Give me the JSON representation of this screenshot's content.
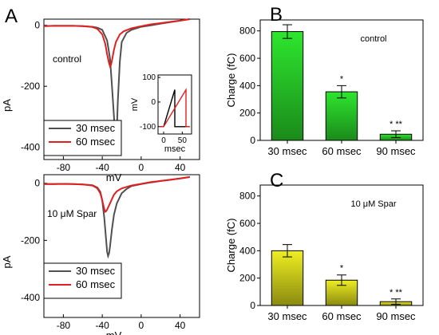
{
  "chart_data": [
    {
      "type": "line",
      "panel": "A",
      "annotation": "control",
      "xlabel": "mV",
      "ylabel": "pA",
      "xlim": [
        -100,
        60
      ],
      "ylim": [
        -440,
        20
      ],
      "xticks": [
        "-80",
        "-40",
        "0",
        "40"
      ],
      "yticks": [
        "0",
        "-200",
        "-400"
      ],
      "legend": {
        "position": "bottom-left",
        "items": [
          "30 msec",
          "60 msec"
        ]
      },
      "series": [
        {
          "name": "30 msec",
          "color": "#505050",
          "x": [
            -100,
            -90,
            -80,
            -70,
            -60,
            -50,
            -45,
            -40,
            -35,
            -32,
            -30,
            -28,
            -27,
            -26,
            -25,
            -24,
            -22,
            -20,
            -15,
            -10,
            0,
            10,
            20,
            30,
            40,
            50
          ],
          "y": [
            -3,
            -2,
            -2,
            -2,
            -3,
            -5,
            -8,
            -15,
            -50,
            -110,
            -200,
            -300,
            -360,
            -385,
            -340,
            -250,
            -120,
            -55,
            -25,
            -15,
            -5,
            0,
            5,
            10,
            15,
            20
          ]
        },
        {
          "name": "60 msec",
          "color": "#e02020",
          "x": [
            -100,
            -90,
            -80,
            -70,
            -60,
            -50,
            -45,
            -40,
            -37,
            -35,
            -33,
            -32,
            -31,
            -30,
            -28,
            -26,
            -22,
            -18,
            -10,
            0,
            10,
            20,
            30,
            40,
            50
          ],
          "y": [
            -3,
            -2,
            -2,
            -2,
            -3,
            -6,
            -12,
            -30,
            -60,
            -95,
            -125,
            -135,
            -130,
            -115,
            -80,
            -55,
            -30,
            -20,
            -10,
            -3,
            3,
            7,
            11,
            15,
            20
          ]
        }
      ],
      "inset": {
        "xlabel": "msec",
        "ylabel": "mV",
        "xticks": [
          "0",
          "50"
        ],
        "yticks": [
          "100",
          "0",
          "-100"
        ],
        "series": [
          {
            "name": "30 msec",
            "color": "#000000",
            "x": [
              -10,
              0,
              0,
              30,
              30,
              70
            ],
            "y": [
              -100,
              -100,
              -100,
              50,
              -100,
              -100
            ]
          },
          {
            "name": "60 msec",
            "color": "#e02020",
            "x": [
              -10,
              0,
              0,
              60,
              60,
              70
            ],
            "y": [
              -100,
              -100,
              -100,
              50,
              -100,
              -100
            ]
          }
        ]
      }
    },
    {
      "type": "line",
      "panel": "A-lower",
      "annotation": "10 μM Spar",
      "xlabel": "mV",
      "ylabel": "pA",
      "xlim": [
        -100,
        60
      ],
      "ylim": [
        -470,
        30
      ],
      "xticks": [
        "-80",
        "-40",
        "0",
        "40"
      ],
      "yticks": [
        "0",
        "-200",
        "-400"
      ],
      "legend": {
        "position": "bottom-left",
        "items": [
          "30 msec",
          "60 msec"
        ]
      },
      "series": [
        {
          "name": "30 msec",
          "color": "#505050",
          "x": [
            -100,
            -90,
            -80,
            -70,
            -60,
            -50,
            -45,
            -42,
            -40,
            -38,
            -36,
            -35,
            -34,
            -33,
            -32,
            -30,
            -28,
            -25,
            -20,
            -15,
            -10,
            0,
            10,
            20,
            30,
            40,
            50
          ],
          "y": [
            -3,
            -3,
            -2,
            -3,
            -4,
            -7,
            -15,
            -30,
            -60,
            -120,
            -200,
            -240,
            -255,
            -245,
            -220,
            -160,
            -110,
            -70,
            -35,
            -20,
            -10,
            -3,
            3,
            8,
            12,
            17,
            22
          ]
        },
        {
          "name": "60 msec",
          "color": "#e02020",
          "x": [
            -100,
            -90,
            -80,
            -70,
            -60,
            -50,
            -45,
            -42,
            -40,
            -38,
            -37,
            -36,
            -35,
            -34,
            -32,
            -30,
            -28,
            -25,
            -20,
            -10,
            0,
            10,
            20,
            30,
            40,
            50
          ],
          "y": [
            -3,
            -3,
            -2,
            -3,
            -4,
            -8,
            -18,
            -35,
            -60,
            -90,
            -100,
            -98,
            -92,
            -85,
            -70,
            -55,
            -40,
            -28,
            -18,
            -8,
            -2,
            4,
            8,
            12,
            17,
            22
          ]
        }
      ]
    },
    {
      "type": "bar",
      "panel": "B",
      "annotation": "control",
      "ylabel": "Charge (fC)",
      "ylim": [
        0,
        880
      ],
      "yticks": [
        "0",
        "200",
        "400",
        "600",
        "800"
      ],
      "categories": [
        "30 msec",
        "60 msec",
        "90 msec"
      ],
      "values": [
        795,
        355,
        45
      ],
      "errors": [
        50,
        45,
        25
      ],
      "significance": [
        "",
        "*",
        "* **"
      ],
      "color_top": "#2ee62e",
      "color_bottom": "#1a8a1a"
    },
    {
      "type": "bar",
      "panel": "C",
      "annotation": "10 μM Spar",
      "ylabel": "Charge (fC)",
      "ylim": [
        0,
        880
      ],
      "yticks": [
        "0",
        "200",
        "400",
        "600",
        "800"
      ],
      "categories": [
        "30 msec",
        "60 msec",
        "90 msec"
      ],
      "values": [
        400,
        185,
        28
      ],
      "errors": [
        45,
        38,
        20
      ],
      "significance": [
        "",
        "*",
        "* **"
      ],
      "color_top": "#eeee22",
      "color_bottom": "#8a8a10"
    }
  ]
}
